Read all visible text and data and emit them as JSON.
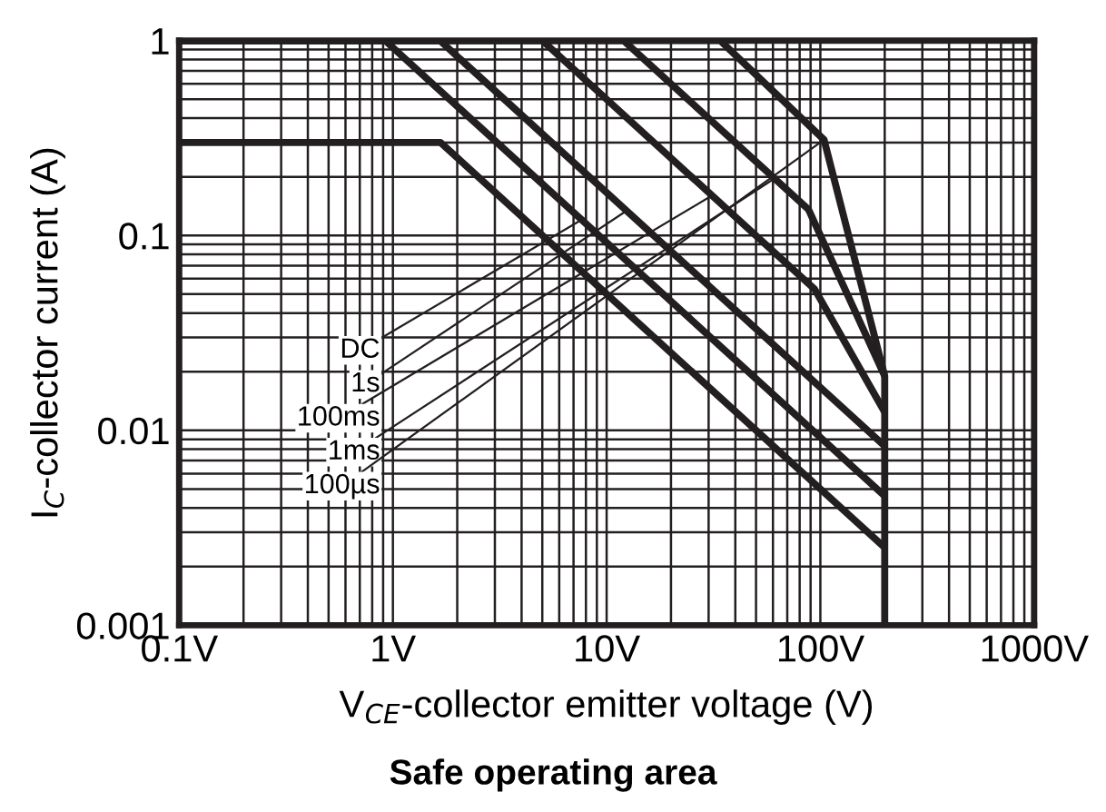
{
  "chart_data": {
    "type": "line",
    "title": "Safe operating area",
    "xlabel": "V$_{CE}$-collector emitter voltage (V)",
    "ylabel": "I$_{C}$-collector current (A)",
    "log": "xy",
    "xlim": [
      0.1,
      1000
    ],
    "ylim": [
      0.001,
      1
    ],
    "xticks": [
      {
        "value": 0.1,
        "label": "0.1V"
      },
      {
        "value": 1,
        "label": "1V"
      },
      {
        "value": 10,
        "label": "10V"
      },
      {
        "value": 100,
        "label": "100V"
      },
      {
        "value": 1000,
        "label": "1000V"
      }
    ],
    "yticks": [
      0.001,
      0.01,
      0.1,
      1
    ],
    "grid": true,
    "marker": "none",
    "line_style": "solid",
    "series": [
      {
        "color": "#231f20",
        "x": [
          0.1,
          1.67,
          200
        ],
        "values": [
          0.3,
          0.3,
          0.0025
        ]
      },
      {
        "color": "#231f20",
        "x": [
          0.1,
          0.92,
          200
        ],
        "values": [
          1,
          1,
          0.0046
        ]
      },
      {
        "color": "#231f20",
        "x": [
          0.1,
          1.66,
          200
        ],
        "values": [
          1,
          1,
          0.0083
        ]
      },
      {
        "color": "#231f20",
        "x": [
          0.1,
          5,
          94,
          200
        ],
        "values": [
          1,
          1,
          0.053,
          0.0124
        ]
      },
      {
        "color": "#231f20",
        "x": [
          0.1,
          12,
          88,
          200
        ],
        "values": [
          1,
          1,
          0.136,
          0.019
        ]
      },
      {
        "color": "#231f20",
        "x": [
          0.1,
          34,
          104,
          200,
          200
        ],
        "values": [
          1,
          1,
          0.31,
          0.019,
          0.001
        ]
      }
    ],
    "annotations": [
      {
        "text": "DC",
        "x": 7.6,
        "y": 0.12
      },
      {
        "text": "1s",
        "x": 12.4,
        "y": 0.134
      },
      {
        "text": "100ms",
        "x": 31,
        "y": 0.16
      },
      {
        "text": "1ms",
        "x": 61,
        "y": 0.196
      },
      {
        "text": "100µs",
        "x": 104,
        "y": 0.31
      }
    ]
  }
}
